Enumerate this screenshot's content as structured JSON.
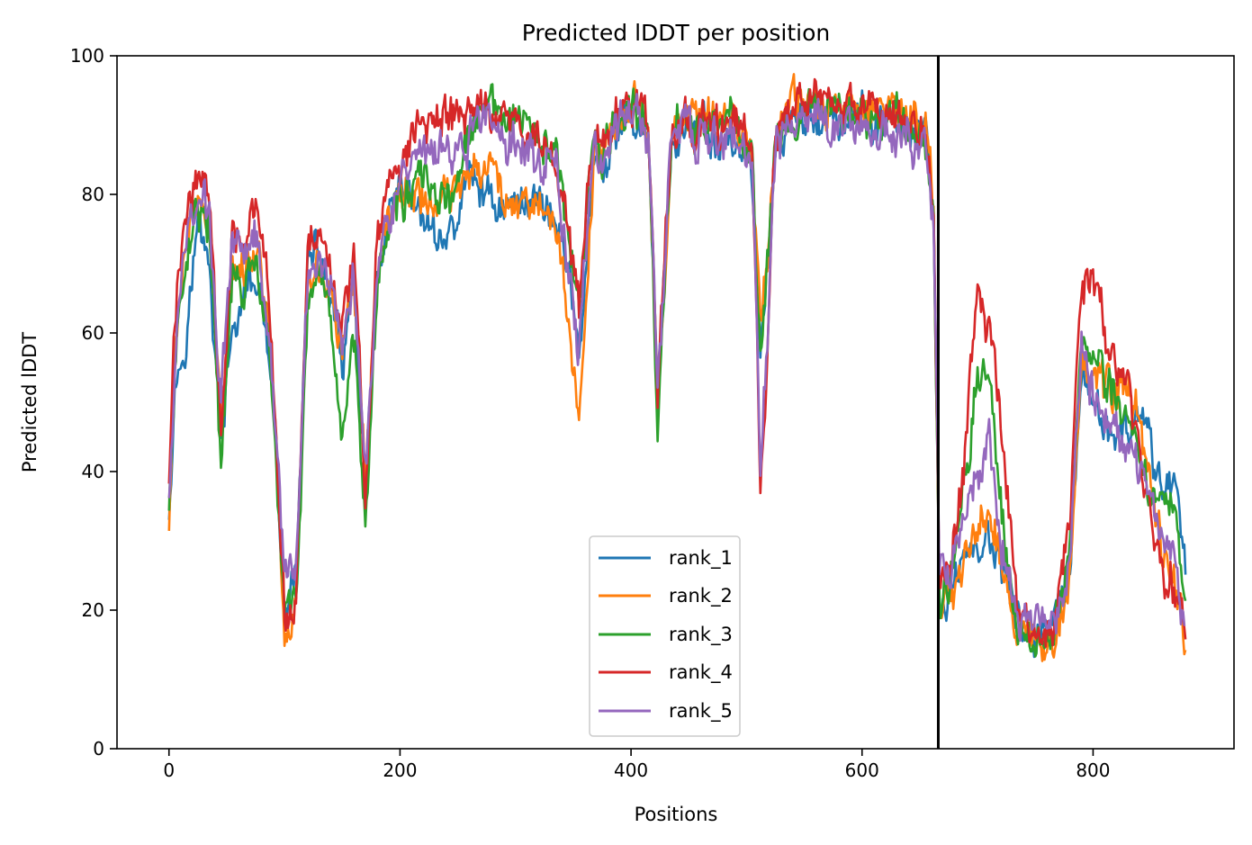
{
  "chart_data": {
    "type": "line",
    "title": "Predicted lDDT per position",
    "xlabel": "Positions",
    "ylabel": "Predicted lDDT",
    "xlim": [
      -45,
      922
    ],
    "ylim": [
      0,
      100
    ],
    "xticks": [
      0,
      200,
      400,
      600,
      800
    ],
    "yticks": [
      0,
      20,
      40,
      60,
      80,
      100
    ],
    "grid": false,
    "legend_position": "lower-center",
    "chain_break": 666,
    "anchor_x": [
      0,
      5,
      15,
      25,
      35,
      45,
      55,
      65,
      75,
      85,
      92,
      100,
      110,
      120,
      130,
      140,
      150,
      160,
      170,
      180,
      190,
      200,
      215,
      230,
      245,
      260,
      275,
      290,
      305,
      320,
      335,
      345,
      355,
      362,
      368,
      375,
      385,
      395,
      405,
      415,
      423,
      435,
      445,
      455,
      465,
      475,
      485,
      495,
      505,
      512,
      518,
      525,
      535,
      550,
      565,
      580,
      600,
      620,
      640,
      655,
      662,
      667,
      675,
      690,
      700,
      710,
      720,
      735,
      750,
      765,
      780,
      790,
      800,
      815,
      830,
      845,
      860,
      870,
      880
    ],
    "series": [
      {
        "name": "rank_1",
        "color": "#1f77b4",
        "values": [
          35,
          52,
          60,
          76,
          70,
          44,
          60,
          65,
          68,
          58,
          44,
          18,
          26,
          70,
          72,
          65,
          55,
          67,
          36,
          67,
          75,
          80,
          78,
          74,
          74,
          83,
          80,
          78,
          79,
          80,
          76,
          70,
          58,
          70,
          84,
          83,
          87,
          90,
          91,
          88,
          52,
          86,
          90,
          88,
          89,
          87,
          88,
          87,
          83,
          58,
          70,
          86,
          90,
          91,
          91,
          90,
          91,
          90,
          89,
          88,
          76,
          20,
          22,
          29,
          29,
          30,
          27,
          18,
          16,
          17,
          25,
          52,
          50,
          46,
          45,
          47,
          37,
          40,
          27
        ]
      },
      {
        "name": "rank_2",
        "color": "#ff7f0e",
        "values": [
          31,
          58,
          74,
          79,
          75,
          48,
          71,
          70,
          72,
          65,
          46,
          17,
          20,
          67,
          70,
          66,
          57,
          68,
          36,
          68,
          76,
          80,
          80,
          78,
          80,
          84,
          85,
          80,
          79,
          79,
          75,
          62,
          49,
          67,
          85,
          86,
          90,
          92,
          94,
          90,
          50,
          88,
          92,
          90,
          91,
          90,
          92,
          90,
          86,
          62,
          72,
          88,
          92,
          93,
          93,
          92,
          93,
          93,
          91,
          90,
          78,
          21,
          21,
          28,
          32,
          35,
          28,
          17,
          15,
          16,
          26,
          56,
          54,
          51,
          53,
          44,
          28,
          25,
          16
        ]
      },
      {
        "name": "rank_3",
        "color": "#2ca02c",
        "values": [
          34,
          55,
          72,
          79,
          75,
          40,
          68,
          66,
          70,
          60,
          43,
          19,
          22,
          63,
          66,
          60,
          45,
          60,
          34,
          66,
          76,
          79,
          82,
          80,
          79,
          88,
          93,
          91,
          90,
          88,
          85,
          75,
          63,
          78,
          87,
          86,
          90,
          91,
          92,
          89,
          46,
          88,
          91,
          89,
          90,
          89,
          91,
          89,
          85,
          57,
          70,
          88,
          91,
          92,
          92,
          91,
          92,
          91,
          90,
          88,
          77,
          22,
          24,
          40,
          54,
          53,
          36,
          17,
          15,
          16,
          30,
          60,
          57,
          52,
          47,
          40,
          33,
          38,
          20
        ]
      },
      {
        "name": "rank_4",
        "color": "#d62728",
        "values": [
          38,
          62,
          78,
          84,
          80,
          46,
          76,
          74,
          78,
          68,
          46,
          19,
          21,
          72,
          75,
          70,
          60,
          72,
          37,
          73,
          82,
          83,
          90,
          91,
          91,
          92,
          93,
          91,
          89,
          88,
          85,
          76,
          64,
          80,
          88,
          87,
          91,
          93,
          93,
          90,
          52,
          88,
          92,
          90,
          91,
          89,
          92,
          90,
          86,
          34,
          58,
          88,
          92,
          93,
          93,
          92,
          93,
          92,
          91,
          89,
          78,
          24,
          24,
          44,
          66,
          60,
          48,
          18,
          15,
          16,
          34,
          68,
          67,
          57,
          52,
          38,
          25,
          24,
          18
        ]
      },
      {
        "name": "rank_5",
        "color": "#9467bd",
        "values": [
          36,
          56,
          74,
          80,
          77,
          50,
          75,
          72,
          75,
          64,
          47,
          26,
          25,
          68,
          72,
          68,
          58,
          70,
          40,
          70,
          78,
          81,
          84,
          86,
          86,
          88,
          92,
          88,
          86,
          86,
          84,
          70,
          58,
          74,
          86,
          85,
          89,
          91,
          92,
          89,
          52,
          88,
          91,
          88,
          89,
          87,
          88,
          86,
          84,
          40,
          60,
          86,
          90,
          91,
          91,
          90,
          90,
          89,
          88,
          86,
          75,
          26,
          24,
          34,
          40,
          44,
          30,
          19,
          17,
          18,
          26,
          58,
          52,
          48,
          44,
          38,
          30,
          27,
          17
        ]
      }
    ]
  }
}
